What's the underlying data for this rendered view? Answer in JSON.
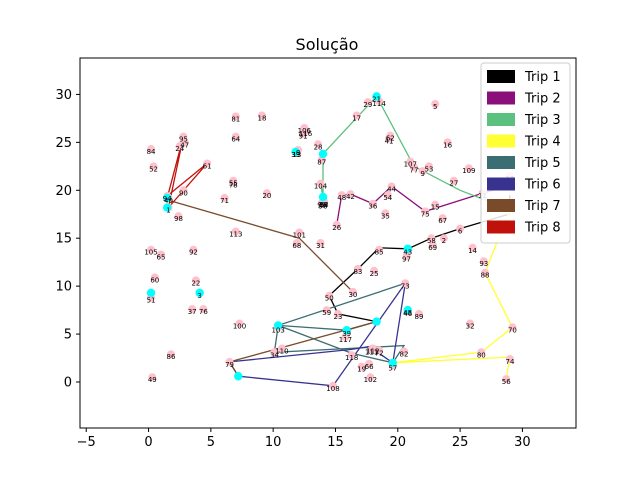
{
  "chart_data": {
    "type": "scatter",
    "title": "Solução",
    "xlabel": "",
    "ylabel": "",
    "xlim": [
      -5.5,
      34.3
    ],
    "ylim": [
      -4.8,
      33.8
    ],
    "xticks": [
      -5,
      0,
      5,
      10,
      15,
      20,
      25,
      30
    ],
    "yticks": [
      0,
      5,
      10,
      15,
      20,
      25,
      30
    ],
    "grid": false,
    "legend_position": "upper-right",
    "node_color": "#ffc0cb",
    "depot_color": "#00ffff",
    "points": [
      {
        "id": "1",
        "x": 1.6,
        "y": 18.2
      },
      {
        "id": "2",
        "x": 23.7,
        "y": 15.0
      },
      {
        "id": "3",
        "x": 4.1,
        "y": 9.3
      },
      {
        "id": "5",
        "x": 23.0,
        "y": 29.0
      },
      {
        "id": "6",
        "x": 25.0,
        "y": 16.0
      },
      {
        "id": "7",
        "x": 27.5,
        "y": 25.5
      },
      {
        "id": "8",
        "x": 12.0,
        "y": 24.2
      },
      {
        "id": "9",
        "x": 22.0,
        "y": 22.0
      },
      {
        "id": "10",
        "x": 28.7,
        "y": 23.3
      },
      {
        "id": "11",
        "x": 26.8,
        "y": 19.7
      },
      {
        "id": "12",
        "x": 29.0,
        "y": 21.5
      },
      {
        "id": "13",
        "x": 11.9,
        "y": 24.0
      },
      {
        "id": "14",
        "x": 26.0,
        "y": 14.0
      },
      {
        "id": "15",
        "x": 23.0,
        "y": 18.5
      },
      {
        "id": "16",
        "x": 24.0,
        "y": 25.0
      },
      {
        "id": "17",
        "x": 16.7,
        "y": 27.8
      },
      {
        "id": "18",
        "x": 9.1,
        "y": 27.8
      },
      {
        "id": "19",
        "x": 17.1,
        "y": 1.6
      },
      {
        "id": "20",
        "x": 9.5,
        "y": 19.7
      },
      {
        "id": "21",
        "x": 18.3,
        "y": 29.8
      },
      {
        "id": "22",
        "x": 3.8,
        "y": 10.6
      },
      {
        "id": "23",
        "x": 15.2,
        "y": 7.1
      },
      {
        "id": "24",
        "x": 2.5,
        "y": 24.6
      },
      {
        "id": "25",
        "x": 18.1,
        "y": 11.6
      },
      {
        "id": "26",
        "x": 15.1,
        "y": 16.4
      },
      {
        "id": "27",
        "x": 24.5,
        "y": 21.0
      },
      {
        "id": "28",
        "x": 13.6,
        "y": 24.8
      },
      {
        "id": "29",
        "x": 17.6,
        "y": 29.2
      },
      {
        "id": "30",
        "x": 16.4,
        "y": 9.4
      },
      {
        "id": "31",
        "x": 13.8,
        "y": 14.5
      },
      {
        "id": "32",
        "x": 25.8,
        "y": 6.1
      },
      {
        "id": "33",
        "x": 11.8,
        "y": 24.0
      },
      {
        "id": "34",
        "x": 10.1,
        "y": 3.1
      },
      {
        "id": "35",
        "x": 19.0,
        "y": 17.6
      },
      {
        "id": "36",
        "x": 18.0,
        "y": 18.6
      },
      {
        "id": "37",
        "x": 3.5,
        "y": 7.6
      },
      {
        "id": "38",
        "x": 14.0,
        "y": 18.8
      },
      {
        "id": "39",
        "x": 15.9,
        "y": 5.3
      },
      {
        "id": "40",
        "x": 1.6,
        "y": 19.2
      },
      {
        "id": "41",
        "x": 19.3,
        "y": 25.4
      },
      {
        "id": "42",
        "x": 16.2,
        "y": 19.6
      },
      {
        "id": "43",
        "x": 20.8,
        "y": 13.8
      },
      {
        "id": "44",
        "x": 19.5,
        "y": 20.4
      },
      {
        "id": "45",
        "x": 20.8,
        "y": 7.5
      },
      {
        "id": "46",
        "x": 20.8,
        "y": 7.4
      },
      {
        "id": "47",
        "x": 2.9,
        "y": 25.0
      },
      {
        "id": "48",
        "x": 15.5,
        "y": 19.5
      },
      {
        "id": "49",
        "x": 0.3,
        "y": 0.5
      },
      {
        "id": "50",
        "x": 14.5,
        "y": 9.0
      },
      {
        "id": "51",
        "x": 0.2,
        "y": 8.8
      },
      {
        "id": "52",
        "x": 0.4,
        "y": 22.5
      },
      {
        "id": "53",
        "x": 22.5,
        "y": 22.5
      },
      {
        "id": "54",
        "x": 19.2,
        "y": 19.5
      },
      {
        "id": "55",
        "x": 6.8,
        "y": 21.0
      },
      {
        "id": "56",
        "x": 28.7,
        "y": 0.3
      },
      {
        "id": "57",
        "x": 19.6,
        "y": 1.7
      },
      {
        "id": "58",
        "x": 22.7,
        "y": 15.0
      },
      {
        "id": "59",
        "x": 14.3,
        "y": 7.5
      },
      {
        "id": "60",
        "x": 0.5,
        "y": 10.9
      },
      {
        "id": "61",
        "x": 4.7,
        "y": 22.8
      },
      {
        "id": "62",
        "x": 19.4,
        "y": 25.7
      },
      {
        "id": "63",
        "x": 14.1,
        "y": 18.8
      },
      {
        "id": "64",
        "x": 7.0,
        "y": 25.6
      },
      {
        "id": "65",
        "x": 1.0,
        "y": 13.3
      },
      {
        "id": "66",
        "x": 17.7,
        "y": 1.9
      },
      {
        "id": "67",
        "x": 23.6,
        "y": 17.1
      },
      {
        "id": "68",
        "x": 11.9,
        "y": 14.5
      },
      {
        "id": "69",
        "x": 22.8,
        "y": 14.3
      },
      {
        "id": "70",
        "x": 29.2,
        "y": 5.7
      },
      {
        "id": "71",
        "x": 6.1,
        "y": 19.2
      },
      {
        "id": "72",
        "x": 18.5,
        "y": 3.3
      },
      {
        "id": "73",
        "x": 20.6,
        "y": 10.3
      },
      {
        "id": "74",
        "x": 29.0,
        "y": 2.4
      },
      {
        "id": "75",
        "x": 22.2,
        "y": 17.8
      },
      {
        "id": "76",
        "x": 4.4,
        "y": 7.6
      },
      {
        "id": "77",
        "x": 21.3,
        "y": 22.4
      },
      {
        "id": "78",
        "x": 6.8,
        "y": 20.8
      },
      {
        "id": "79",
        "x": 6.5,
        "y": 2.1
      },
      {
        "id": "80",
        "x": 26.7,
        "y": 3.1
      },
      {
        "id": "81",
        "x": 7.0,
        "y": 27.7
      },
      {
        "id": "82",
        "x": 20.5,
        "y": 3.2
      },
      {
        "id": "83",
        "x": 16.8,
        "y": 11.8
      },
      {
        "id": "84",
        "x": 0.2,
        "y": 24.3
      },
      {
        "id": "85",
        "x": 18.5,
        "y": 13.8
      },
      {
        "id": "86",
        "x": 1.8,
        "y": 2.9
      },
      {
        "id": "87",
        "x": 13.9,
        "y": 23.2
      },
      {
        "id": "88",
        "x": 27.0,
        "y": 11.4
      },
      {
        "id": "89",
        "x": 21.7,
        "y": 7.1
      },
      {
        "id": "90",
        "x": 2.8,
        "y": 20.0
      },
      {
        "id": "91",
        "x": 12.4,
        "y": 25.9
      },
      {
        "id": "92",
        "x": 3.6,
        "y": 13.8
      },
      {
        "id": "93",
        "x": 26.9,
        "y": 12.6
      },
      {
        "id": "94",
        "x": 1.5,
        "y": 19.4
      },
      {
        "id": "95",
        "x": 2.8,
        "y": 25.6
      },
      {
        "id": "96",
        "x": 14.0,
        "y": 18.6
      },
      {
        "id": "97",
        "x": 20.7,
        "y": 13.1
      },
      {
        "id": "98",
        "x": 2.4,
        "y": 17.3
      },
      {
        "id": "99",
        "x": 13.9,
        "y": 18.7
      },
      {
        "id": "100",
        "x": 7.3,
        "y": 6.1
      },
      {
        "id": "101",
        "x": 12.1,
        "y": 15.6
      },
      {
        "id": "102",
        "x": 17.8,
        "y": 0.5
      },
      {
        "id": "103",
        "x": 10.4,
        "y": 5.7
      },
      {
        "id": "104",
        "x": 13.8,
        "y": 20.7
      },
      {
        "id": "105",
        "x": 0.2,
        "y": 13.8
      },
      {
        "id": "106",
        "x": 12.5,
        "y": 26.5
      },
      {
        "id": "107",
        "x": 21.0,
        "y": 23.0
      },
      {
        "id": "108",
        "x": 14.8,
        "y": -0.4
      },
      {
        "id": "109",
        "x": 25.7,
        "y": 22.3
      },
      {
        "id": "110",
        "x": 10.7,
        "y": 3.5
      },
      {
        "id": "111",
        "x": 17.9,
        "y": 3.4
      },
      {
        "id": "112",
        "x": 18.0,
        "y": 3.5
      },
      {
        "id": "113",
        "x": 7.0,
        "y": 15.7
      },
      {
        "id": "114",
        "x": 18.5,
        "y": 29.3
      },
      {
        "id": "116",
        "x": 12.6,
        "y": 26.2
      },
      {
        "id": "117",
        "x": 15.8,
        "y": 4.7
      },
      {
        "id": "118",
        "x": 16.3,
        "y": 2.8
      },
      {
        "id": "119",
        "x": 28.9,
        "y": 20.5
      }
    ],
    "depots": [
      {
        "id": "0",
        "x": 18.3,
        "y": 6.3
      },
      {
        "id": "4",
        "x": 18.3,
        "y": 29.8
      },
      {
        "id": "1",
        "x": 1.5,
        "y": 18.2
      },
      {
        "id": "2",
        "x": 7.2,
        "y": 0.6
      },
      {
        "id": "3",
        "x": 4.1,
        "y": 9.3
      },
      {
        "id": "57",
        "x": 19.6,
        "y": 2.0
      },
      {
        "id": "51",
        "x": 0.2,
        "y": 9.3
      },
      {
        "id": "43",
        "x": 20.8,
        "y": 13.9
      },
      {
        "id": "46",
        "x": 20.8,
        "y": 7.5
      },
      {
        "id": "94",
        "x": 1.5,
        "y": 19.2
      },
      {
        "id": "33",
        "x": 11.8,
        "y": 24.0
      },
      {
        "id": "87",
        "x": 14.0,
        "y": 23.8
      },
      {
        "id": "38",
        "x": 14.0,
        "y": 19.3
      },
      {
        "id": "39",
        "x": 15.9,
        "y": 5.4
      },
      {
        "id": "103",
        "x": 10.4,
        "y": 5.9
      }
    ],
    "legend": [
      {
        "name": "Trip 1",
        "color": "#000000"
      },
      {
        "name": "Trip 2",
        "color": "#8b0f7a"
      },
      {
        "name": "Trip 3",
        "color": "#5cc07e"
      },
      {
        "name": "Trip 4",
        "color": "#ffff33"
      },
      {
        "name": "Trip 5",
        "color": "#3b6e73"
      },
      {
        "name": "Trip 6",
        "color": "#38338f"
      },
      {
        "name": "Trip 7",
        "color": "#7a4b2a"
      },
      {
        "name": "Trip 8",
        "color": "#c0110a"
      }
    ],
    "routes": [
      {
        "trip": 1,
        "path": [
          [
            18.3,
            6.3
          ],
          [
            15.2,
            7.1
          ],
          [
            14.5,
            9.0
          ],
          [
            16.8,
            11.8
          ],
          [
            18.5,
            14.0
          ],
          [
            20.8,
            13.9
          ],
          [
            22.7,
            15.0
          ],
          [
            25.0,
            16.0
          ],
          [
            28.9,
            17.5
          ],
          [
            29.0,
            19.5
          ]
        ]
      },
      {
        "trip": 2,
        "path": [
          [
            15.1,
            16.4
          ],
          [
            15.5,
            19.5
          ],
          [
            16.2,
            19.6
          ],
          [
            18.0,
            18.6
          ],
          [
            19.5,
            20.4
          ],
          [
            22.2,
            17.8
          ],
          [
            26.8,
            19.7
          ],
          [
            29.0,
            20.5
          ]
        ]
      },
      {
        "trip": 3,
        "path": [
          [
            13.8,
            20.7
          ],
          [
            14.0,
            19.3
          ],
          [
            14.0,
            23.8
          ],
          [
            18.3,
            29.8
          ],
          [
            21.3,
            22.5
          ],
          [
            25.0,
            20.0
          ],
          [
            29.0,
            18.0
          ]
        ]
      },
      {
        "trip": 4,
        "path": [
          [
            29.0,
            18.0
          ],
          [
            27.0,
            11.4
          ],
          [
            29.2,
            5.7
          ],
          [
            26.7,
            3.1
          ],
          [
            19.6,
            2.0
          ],
          [
            29.0,
            2.6
          ],
          [
            28.7,
            0.3
          ]
        ]
      },
      {
        "trip": 5,
        "path": [
          [
            18.3,
            6.3
          ],
          [
            15.9,
            5.4
          ],
          [
            10.4,
            5.9
          ],
          [
            10.1,
            3.1
          ],
          [
            20.5,
            3.8
          ],
          [
            19.6,
            2.0
          ],
          [
            16.3,
            3.0
          ],
          [
            10.4,
            5.9
          ],
          [
            20.6,
            10.3
          ]
        ]
      },
      {
        "trip": 6,
        "path": [
          [
            7.2,
            0.6
          ],
          [
            14.8,
            -0.4
          ],
          [
            20.6,
            10.3
          ],
          [
            19.6,
            2.0
          ],
          [
            17.7,
            3.7
          ],
          [
            16.3,
            3.4
          ],
          [
            6.5,
            2.1
          ],
          [
            7.2,
            0.6
          ]
        ]
      },
      {
        "trip": 7,
        "path": [
          [
            18.3,
            6.3
          ],
          [
            6.5,
            2.1
          ],
          [
            7.2,
            0.6
          ]
        ],
        "extra": [
          [
            1.5,
            19.0
          ],
          [
            12.1,
            15.0
          ],
          [
            16.4,
            9.4
          ]
        ]
      },
      {
        "trip": 8,
        "path": [
          [
            1.5,
            19.2
          ],
          [
            2.8,
            25.6
          ],
          [
            1.6,
            18.2
          ],
          [
            4.7,
            22.8
          ],
          [
            1.5,
            19.4
          ]
        ]
      }
    ]
  }
}
